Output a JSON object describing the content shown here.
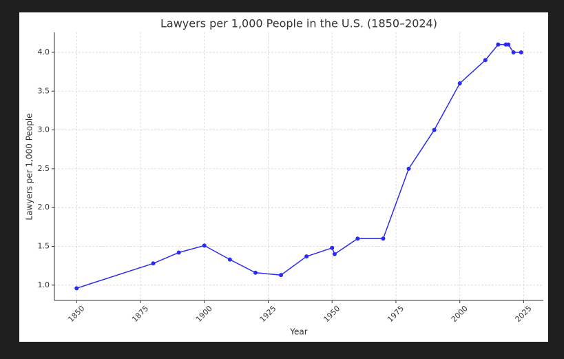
{
  "chart_data": {
    "type": "line",
    "title": "Lawyers per 1,000 People in the U.S. (1850–2024)",
    "x_label": "Year",
    "y_label": "Lawyers per 1,000 People",
    "x": [
      1850,
      1880,
      1890,
      1900,
      1910,
      1920,
      1930,
      1940,
      1950,
      1951,
      1960,
      1970,
      1980,
      1990,
      2000,
      2010,
      2015,
      2018,
      2019,
      2021,
      2024
    ],
    "series": [
      {
        "name": "Lawyers per 1,000 People",
        "color": "#2b2bef",
        "values": [
          0.96,
          1.28,
          1.42,
          1.51,
          1.33,
          1.16,
          1.13,
          1.37,
          1.48,
          1.4,
          1.6,
          1.6,
          2.5,
          3.0,
          3.6,
          3.9,
          4.1,
          4.1,
          4.1,
          4.0,
          4.0
        ]
      }
    ],
    "xlim": [
      1841.3,
      2032.7
    ],
    "ylim": [
      0.803,
      4.257
    ],
    "xticks": [
      1850,
      1875,
      1900,
      1925,
      1950,
      1975,
      2000,
      2025
    ],
    "yticks": [
      {
        "value": 1,
        "label": "1.0"
      },
      {
        "value": 1.5,
        "label": "1.5"
      },
      {
        "value": 2,
        "label": "2.0"
      },
      {
        "value": 2.5,
        "label": "2.5"
      },
      {
        "value": 3,
        "label": "3.0"
      },
      {
        "value": 3.5,
        "label": "3.5"
      },
      {
        "value": 4,
        "label": "4.0"
      }
    ],
    "grid": true
  }
}
